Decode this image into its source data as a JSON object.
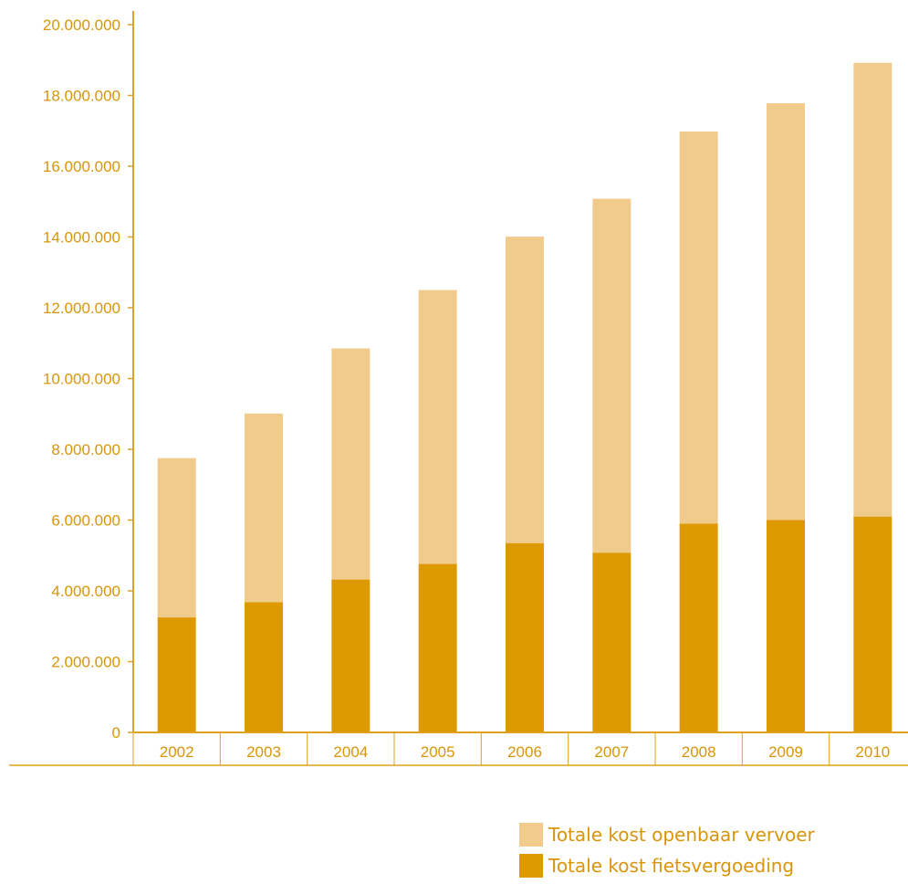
{
  "chart_data": {
    "type": "bar",
    "stacked": true,
    "categories": [
      "2002",
      "2003",
      "2004",
      "2005",
      "2006",
      "2007",
      "2008",
      "2009",
      "2010"
    ],
    "series": [
      {
        "name": "Totale kost fietsvergoeding",
        "color": "#dd9a00",
        "values": [
          3250000,
          3680000,
          4320000,
          4760000,
          5350000,
          5080000,
          5900000,
          6000000,
          6100000
        ]
      },
      {
        "name": "Totale kost openbaar vervoer",
        "color": "#f0cb8c",
        "values": [
          4500000,
          5330000,
          6530000,
          7740000,
          8660000,
          10000000,
          11080000,
          11780000,
          12820000
        ]
      }
    ],
    "y_ticks": [
      "0",
      "2.000.000",
      "4.000.000",
      "6.000.000",
      "8.000.000",
      "10.000.000",
      "12.000.000",
      "14.000.000",
      "16.000.000",
      "18.000.000",
      "20.000.000"
    ],
    "ylim": [
      0,
      20000000
    ],
    "grid": false,
    "legend_position": "bottom-right",
    "axis_color": "#e0a020"
  },
  "legend": {
    "item_openbaar": "Totale kost openbaar vervoer",
    "item_fiets": "Totale kost fietsvergoeding"
  }
}
